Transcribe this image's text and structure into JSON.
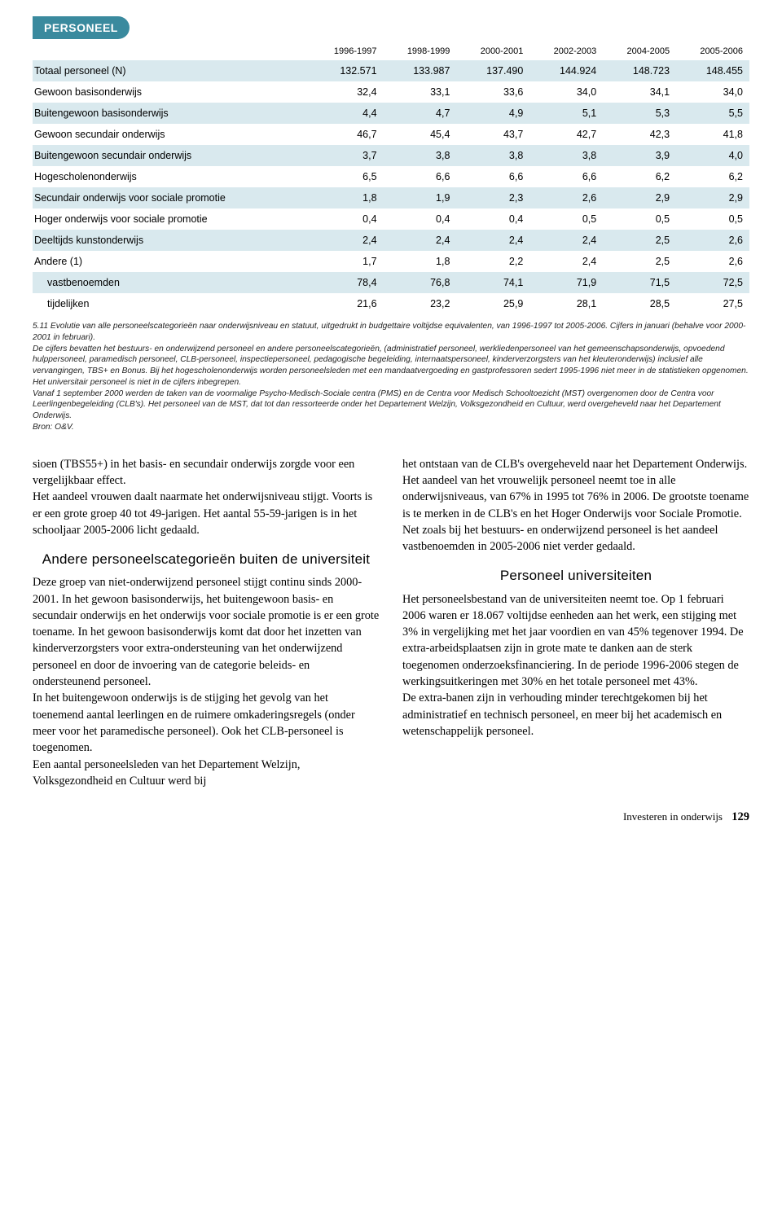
{
  "page_header": "PERSONEEL",
  "table": {
    "columns": [
      "",
      "1996-1997",
      "1998-1999",
      "2000-2001",
      "2002-2003",
      "2004-2005",
      "2005-2006"
    ],
    "rows": [
      {
        "label": "Totaal personeel (N)",
        "vals": [
          "132.571",
          "133.987",
          "137.490",
          "144.924",
          "148.723",
          "148.455"
        ],
        "shade": "even"
      },
      {
        "label": "Gewoon basisonderwijs",
        "vals": [
          "32,4",
          "33,1",
          "33,6",
          "34,0",
          "34,1",
          "34,0"
        ],
        "shade": "odd"
      },
      {
        "label": "Buitengewoon basisonderwijs",
        "vals": [
          "4,4",
          "4,7",
          "4,9",
          "5,1",
          "5,3",
          "5,5"
        ],
        "shade": "even"
      },
      {
        "label": "Gewoon secundair onderwijs",
        "vals": [
          "46,7",
          "45,4",
          "43,7",
          "42,7",
          "42,3",
          "41,8"
        ],
        "shade": "odd"
      },
      {
        "label": "Buitengewoon secundair onderwijs",
        "vals": [
          "3,7",
          "3,8",
          "3,8",
          "3,8",
          "3,9",
          "4,0"
        ],
        "shade": "even"
      },
      {
        "label": "Hogescholenonderwijs",
        "vals": [
          "6,5",
          "6,6",
          "6,6",
          "6,6",
          "6,2",
          "6,2"
        ],
        "shade": "odd"
      },
      {
        "label": "Secundair onderwijs voor sociale promotie",
        "vals": [
          "1,8",
          "1,9",
          "2,3",
          "2,6",
          "2,9",
          "2,9"
        ],
        "shade": "even"
      },
      {
        "label": "Hoger onderwijs voor sociale promotie",
        "vals": [
          "0,4",
          "0,4",
          "0,4",
          "0,5",
          "0,5",
          "0,5"
        ],
        "shade": "odd"
      },
      {
        "label": "Deeltijds kunstonderwijs",
        "vals": [
          "2,4",
          "2,4",
          "2,4",
          "2,4",
          "2,5",
          "2,6"
        ],
        "shade": "even"
      },
      {
        "label": "Andere (1)",
        "vals": [
          "1,7",
          "1,8",
          "2,2",
          "2,4",
          "2,5",
          "2,6"
        ],
        "shade": "odd"
      },
      {
        "label": "vastbenoemden",
        "vals": [
          "78,4",
          "76,8",
          "74,1",
          "71,9",
          "71,5",
          "72,5"
        ],
        "shade": "even",
        "indent": true
      },
      {
        "label": "tijdelijken",
        "vals": [
          "21,6",
          "23,2",
          "25,9",
          "28,1",
          "28,5",
          "27,5"
        ],
        "shade": "odd",
        "indent": true
      }
    ]
  },
  "footnote": "5.11 Evolutie van alle personeelscategorieën naar onderwijsniveau en statuut, uitgedrukt in budgettaire voltijdse equivalenten, van 1996-1997 tot 2005-2006. Cijfers in januari (behalve voor 2000-2001 in februari).\nDe cijfers bevatten het bestuurs- en onderwijzend personeel en andere personeelscategorieën, (administratief personeel, werkliedenpersoneel van het gemeenschapsonderwijs, opvoedend hulppersoneel, paramedisch personeel, CLB-personeel, inspectiepersoneel, pedagogische begeleiding, internaatspersoneel, kinderverzorgsters van het kleuteronderwijs) inclusief alle vervangingen, TBS+ en Bonus. Bij het hogescholenonderwijs worden personeelsleden met een mandaatvergoeding en gastprofessoren sedert 1995-1996 niet meer in de statistieken opgenomen. Het universitair personeel is niet in de cijfers inbegrepen.\nVanaf 1 september 2000 werden de taken van de voormalige Psycho-Medisch-Sociale centra (PMS) en de Centra voor Medisch Schooltoezicht (MST) overgenomen door de Centra voor Leerlingenbegeleiding (CLB's). Het personeel van de MST, dat tot dan ressorteerde onder het Departement Welzijn, Volksgezondheid en Cultuur, werd overgeheveld naar het Departement Onderwijs.\nBron: O&V.",
  "left_col": {
    "p1": "sioen (TBS55+) in het basis- en secundair onderwijs zorgde voor een vergelijkbaar effect.\nHet aandeel vrouwen daalt naarmate het onderwijsniveau stijgt. Voorts is er een grote groep 40 tot 49-jarigen. Het aantal 55-59-jarigen is in het schooljaar 2005-2006 licht gedaald.",
    "h1": "Andere personeelscategorieën buiten de universiteit",
    "p2": "Deze groep van niet-onderwijzend personeel stijgt continu sinds 2000-2001. In het gewoon basisonderwijs, het buitengewoon basis- en secundair onderwijs en het onderwijs voor sociale promotie is er een grote toename. In het gewoon basisonderwijs komt dat door het inzetten van kinderverzorgsters voor extra-ondersteuning van het onderwijzend personeel en door de invoering van de categorie beleids- en ondersteunend personeel.\nIn het buitengewoon onderwijs is de stijging het gevolg van het toenemend aantal leerlingen en de ruimere omkaderingsregels (onder meer voor het paramedische personeel). Ook het CLB-personeel is toegenomen.\nEen aantal personeelsleden van het Departement Welzijn, Volksgezondheid en Cultuur werd bij"
  },
  "right_col": {
    "p1": "het ontstaan van de CLB's overgeheveld naar het Departement Onderwijs.\nHet aandeel van het vrouwelijk personeel neemt toe in alle onderwijsniveaus, van 67% in 1995 tot 76% in 2006. De grootste toename is te merken in de CLB's en het Hoger Onderwijs voor Sociale Promotie.\nNet zoals bij het bestuurs- en onderwijzend personeel is het aandeel vastbenoemden in 2005-2006 niet verder gedaald.",
    "h1": "Personeel universiteiten",
    "p2": "Het personeelsbestand van de universiteiten neemt toe. Op 1 februari 2006 waren er 18.067 voltijdse eenheden aan het werk, een stijging met 3% in vergelijking met het jaar voordien en van 45% tegenover 1994. De extra-arbeidsplaatsen zijn in grote mate te danken aan de sterk toegenomen onderzoeksfinanciering. In de periode 1996-2006 stegen de werkingsuitkeringen met 30% en het totale personeel met 43%.\nDe extra-banen zijn in verhouding minder terechtgekomen bij het administratief en technisch personeel, en meer bij het academisch en wetenschappelijk personeel."
  },
  "footer": {
    "label": "Investeren in onderwijs",
    "page": "129"
  },
  "colors": {
    "header_band": "#3a8a9e",
    "row_even": "#d9e9ee",
    "row_odd": "#ffffff"
  }
}
